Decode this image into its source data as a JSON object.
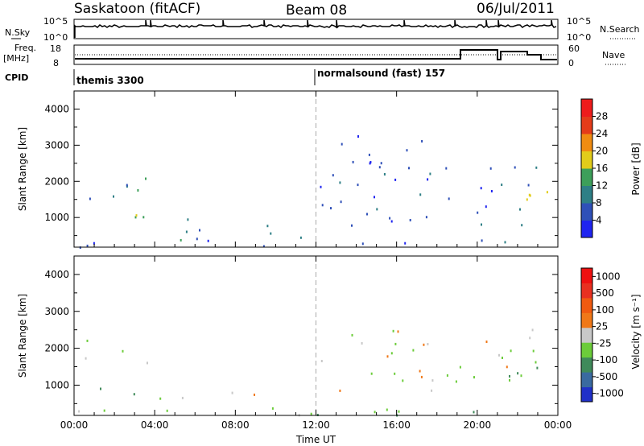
{
  "header": {
    "station": "Saskatoon (fitACF)",
    "beam": "Beam 08",
    "date": "06/Jul/2011"
  },
  "top_strips": {
    "nsky_label": "N.Sky",
    "nsky_ticks": [
      "10^5",
      "10^0"
    ],
    "nsearch_label": "N.Search",
    "nsearch_ticks": [
      "10^5",
      "10^0"
    ],
    "freq_label": "Freq.",
    "freq_unit": "[MHz]",
    "freq_ticks": [
      "18",
      "8"
    ],
    "nave_label": "Nave",
    "nave_ticks": [
      "60",
      "0"
    ],
    "cpid_label": "CPID",
    "cpid_segments": [
      {
        "label": "themis 3300",
        "start_hour": 0
      },
      {
        "label": "normalsound (fast) 157",
        "start_hour": 12
      }
    ]
  },
  "chart_data": [
    {
      "type": "heatmap",
      "panel": "power",
      "ylabel": "Slant Range [km]",
      "xlabel": "",
      "x_range_hours": [
        0,
        24
      ],
      "ylim": [
        180,
        4500
      ],
      "y_ticks": [
        "1000",
        "2000",
        "3000",
        "4000"
      ],
      "x_ticks": [
        "00:00",
        "04:00",
        "08:00",
        "12:00",
        "16:00",
        "20:00",
        "00:00"
      ],
      "colorbar": {
        "label": "Power [dB]",
        "ticks": [
          "4",
          "8",
          "12",
          "16",
          "20",
          "24",
          "28"
        ],
        "colors": [
          "#1f24f0",
          "#2f50b8",
          "#2e7f86",
          "#3d9f5a",
          "#e2cc1a",
          "#f08c12",
          "#e43c1a",
          "#ee1c1c"
        ]
      },
      "scatter_bands": [
        {
          "t0": 0.0,
          "t1": 4.0,
          "r0": 1500,
          "r1": 2300,
          "level": 2
        },
        {
          "t0": 1.0,
          "t1": 3.5,
          "r0": 700,
          "r1": 1400,
          "level": 3
        },
        {
          "t0": 4.0,
          "t1": 11.5,
          "r0": 400,
          "r1": 1000,
          "level": 2
        },
        {
          "t0": 12.0,
          "t1": 23.0,
          "r0": 800,
          "r1": 2600,
          "level": 1
        },
        {
          "t0": 13.0,
          "t1": 17.5,
          "r0": 2300,
          "r1": 3400,
          "level": 0
        },
        {
          "t0": 22.0,
          "t1": 24.0,
          "r0": 700,
          "r1": 2000,
          "level": 4
        },
        {
          "t0": 0.0,
          "t1": 24.0,
          "r0": 200,
          "r1": 420,
          "level": 1
        }
      ]
    },
    {
      "type": "heatmap",
      "panel": "velocity",
      "ylabel": "Slant Range [km]",
      "xlabel": "Time UT",
      "x_range_hours": [
        0,
        24
      ],
      "ylim": [
        180,
        4500
      ],
      "y_ticks": [
        "1000",
        "2000",
        "3000",
        "4000"
      ],
      "x_ticks": [
        "00:00",
        "04:00",
        "08:00",
        "12:00",
        "16:00",
        "20:00",
        "00:00"
      ],
      "colorbar": {
        "label": "Velocity [m s⁻¹]",
        "ticks": [
          "1000",
          "500",
          "100",
          "25",
          "-25",
          "-100",
          "-500",
          "-1000"
        ],
        "colors": [
          "#2030c8",
          "#3a6aa0",
          "#3f8a5a",
          "#6ccc3a",
          "#c8c8c8",
          "#f07818",
          "#f05a10",
          "#e83020",
          "#ee1010"
        ]
      },
      "scatter_bands": [
        {
          "t0": 0.5,
          "t1": 4.0,
          "r0": 1500,
          "r1": 2300,
          "level": 4
        },
        {
          "t0": 1.0,
          "t1": 3.5,
          "r0": 700,
          "r1": 1200,
          "level": 2
        },
        {
          "t0": 4.0,
          "t1": 11.5,
          "r0": 400,
          "r1": 900,
          "level": 4
        },
        {
          "t0": 12.0,
          "t1": 13.2,
          "r0": 1100,
          "r1": 1900,
          "level": 5
        },
        {
          "t0": 13.0,
          "t1": 23.0,
          "r0": 800,
          "r1": 2600,
          "level": 4
        },
        {
          "t0": 21.0,
          "t1": 24.0,
          "r0": 800,
          "r1": 2000,
          "level": 2
        },
        {
          "t0": 0.0,
          "t1": 24.0,
          "r0": 200,
          "r1": 420,
          "level": 3
        }
      ]
    }
  ]
}
